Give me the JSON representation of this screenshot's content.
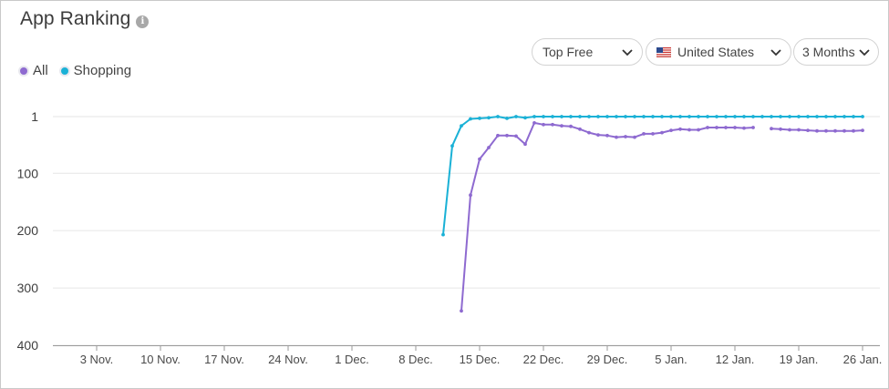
{
  "header": {
    "title": "App Ranking",
    "info_icon": "info-icon"
  },
  "filters": {
    "chart_type": "Top Free",
    "country": "United States",
    "country_flag_icon": "us-flag-icon",
    "range": "3 Months"
  },
  "chart_data": {
    "type": "line",
    "title": "",
    "xlabel": "",
    "ylabel": "",
    "y_axis": {
      "reversed": true,
      "range": [
        1,
        400
      ],
      "ticks": [
        1,
        100,
        200,
        300,
        400
      ]
    },
    "x_axis": {
      "tick_labels": [
        "3 Nov.",
        "10 Nov.",
        "17 Nov.",
        "24 Nov.",
        "1 Dec.",
        "8 Dec.",
        "15 Dec.",
        "22 Dec.",
        "29 Dec.",
        "5 Jan.",
        "12 Jan.",
        "19 Jan.",
        "26 Jan."
      ],
      "start": "2023-10-28",
      "end": "2024-01-27"
    },
    "grid": true,
    "legend_position": "top-left",
    "series": [
      {
        "name": "All",
        "color": "#8e6ad0",
        "segments": [
          [
            [
              "2023-12-13",
              340
            ],
            [
              "2023-12-14",
              138
            ],
            [
              "2023-12-15",
              75
            ],
            [
              "2023-12-16",
              55
            ],
            [
              "2023-12-17",
              34
            ],
            [
              "2023-12-18",
              34
            ],
            [
              "2023-12-19",
              35
            ],
            [
              "2023-12-20",
              49
            ],
            [
              "2023-12-21",
              12
            ],
            [
              "2023-12-22",
              15
            ],
            [
              "2023-12-23",
              15
            ],
            [
              "2023-12-24",
              17
            ],
            [
              "2023-12-25",
              18
            ],
            [
              "2023-12-26",
              23
            ],
            [
              "2023-12-27",
              29
            ],
            [
              "2023-12-28",
              33
            ],
            [
              "2023-12-29",
              34
            ],
            [
              "2023-12-30",
              37
            ],
            [
              "2023-12-31",
              36
            ],
            [
              "2024-01-01",
              37
            ],
            [
              "2024-01-02",
              31
            ],
            [
              "2024-01-03",
              31
            ],
            [
              "2024-01-04",
              29
            ],
            [
              "2024-01-05",
              25
            ],
            [
              "2024-01-06",
              23
            ],
            [
              "2024-01-07",
              24
            ],
            [
              "2024-01-08",
              24
            ],
            [
              "2024-01-09",
              20
            ],
            [
              "2024-01-10",
              20
            ],
            [
              "2024-01-11",
              20
            ],
            [
              "2024-01-12",
              20
            ],
            [
              "2024-01-13",
              21
            ],
            [
              "2024-01-14",
              20
            ]
          ],
          [
            [
              "2024-01-16",
              22
            ],
            [
              "2024-01-17",
              23
            ],
            [
              "2024-01-18",
              24
            ],
            [
              "2024-01-19",
              24
            ],
            [
              "2024-01-20",
              25
            ],
            [
              "2024-01-21",
              26
            ],
            [
              "2024-01-22",
              26
            ],
            [
              "2024-01-23",
              26
            ],
            [
              "2024-01-24",
              26
            ],
            [
              "2024-01-25",
              26
            ],
            [
              "2024-01-26",
              25
            ]
          ]
        ]
      },
      {
        "name": "Shopping",
        "color": "#1ab1d6",
        "segments": [
          [
            [
              "2023-12-11",
              207
            ],
            [
              "2023-12-12",
              52
            ],
            [
              "2023-12-13",
              17
            ],
            [
              "2023-12-14",
              5
            ],
            [
              "2023-12-15",
              4
            ],
            [
              "2023-12-16",
              3
            ],
            [
              "2023-12-17",
              1
            ],
            [
              "2023-12-18",
              4
            ],
            [
              "2023-12-19",
              1
            ],
            [
              "2023-12-20",
              3
            ],
            [
              "2023-12-21",
              1
            ],
            [
              "2023-12-22",
              1
            ],
            [
              "2023-12-23",
              1
            ],
            [
              "2023-12-24",
              1
            ],
            [
              "2023-12-25",
              1
            ],
            [
              "2023-12-26",
              1
            ],
            [
              "2023-12-27",
              1
            ],
            [
              "2023-12-28",
              1
            ],
            [
              "2023-12-29",
              1
            ],
            [
              "2023-12-30",
              1
            ],
            [
              "2023-12-31",
              1
            ],
            [
              "2024-01-01",
              1
            ],
            [
              "2024-01-02",
              1
            ],
            [
              "2024-01-03",
              1
            ],
            [
              "2024-01-04",
              1
            ],
            [
              "2024-01-05",
              1
            ],
            [
              "2024-01-06",
              1
            ],
            [
              "2024-01-07",
              1
            ],
            [
              "2024-01-08",
              1
            ],
            [
              "2024-01-09",
              1
            ],
            [
              "2024-01-10",
              1
            ],
            [
              "2024-01-11",
              1
            ],
            [
              "2024-01-12",
              1
            ],
            [
              "2024-01-13",
              1
            ],
            [
              "2024-01-14",
              1
            ],
            [
              "2024-01-15",
              1
            ],
            [
              "2024-01-16",
              1
            ],
            [
              "2024-01-17",
              1
            ],
            [
              "2024-01-18",
              1
            ],
            [
              "2024-01-19",
              1
            ],
            [
              "2024-01-20",
              1
            ],
            [
              "2024-01-21",
              1
            ],
            [
              "2024-01-22",
              1
            ],
            [
              "2024-01-23",
              1
            ],
            [
              "2024-01-24",
              1
            ],
            [
              "2024-01-25",
              1
            ],
            [
              "2024-01-26",
              1
            ]
          ]
        ]
      }
    ]
  }
}
